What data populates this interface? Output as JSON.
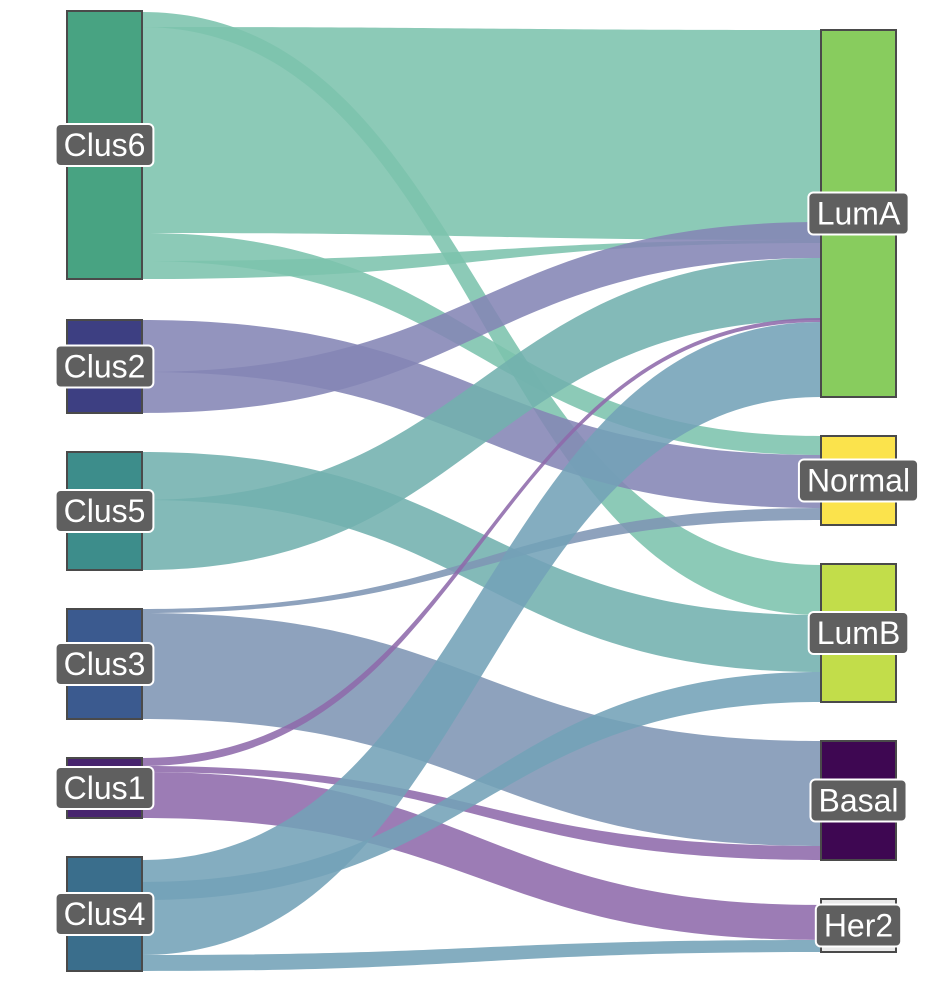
{
  "diagram": {
    "type": "sankey",
    "source_nodes": [
      {
        "id": "Clus6",
        "label": "Clus6",
        "color": "#48a382"
      },
      {
        "id": "Clus2",
        "label": "Clus2",
        "color": "#3d3f82"
      },
      {
        "id": "Clus5",
        "label": "Clus5",
        "color": "#3d8d8b"
      },
      {
        "id": "Clus3",
        "label": "Clus3",
        "color": "#3b5a8f"
      },
      {
        "id": "Clus1",
        "label": "Clus1",
        "color": "#47246e"
      },
      {
        "id": "Clus4",
        "label": "Clus4",
        "color": "#3a6e8c"
      }
    ],
    "target_nodes": [
      {
        "id": "LumA",
        "label": "LumA",
        "color": "#88cc5e"
      },
      {
        "id": "Normal",
        "label": "Normal",
        "color": "#fbe34c"
      },
      {
        "id": "LumB",
        "label": "LumB",
        "color": "#c2dd4a"
      },
      {
        "id": "Basal",
        "label": "Basal",
        "color": "#3e0752"
      },
      {
        "id": "Her2",
        "label": "Her2",
        "color": "#eaeaea"
      }
    ],
    "flow_colors": {
      "Clus6": "#7cc3ad",
      "Clus2": "#8485b5",
      "Clus5": "#72b0ae",
      "Clus3": "#7e95b4",
      "Clus1": "#8e6aab",
      "Clus4": "#73a2b7"
    }
  }
}
